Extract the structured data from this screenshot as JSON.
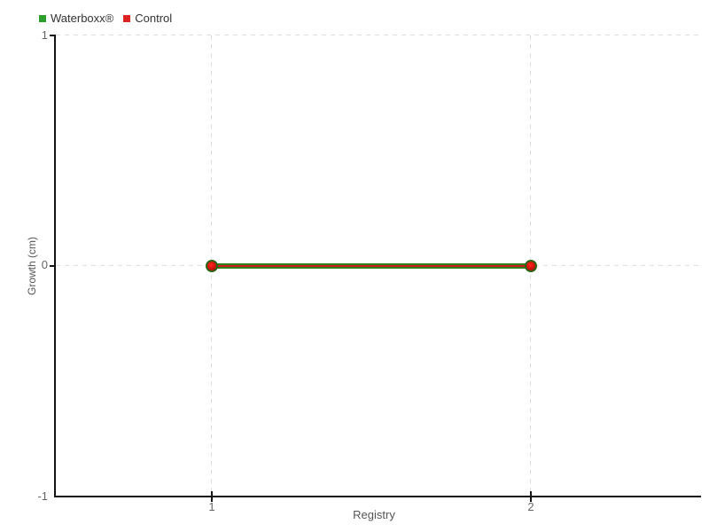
{
  "chart_data": {
    "type": "line",
    "title": "",
    "x": [
      1,
      2
    ],
    "series": [
      {
        "name": "Waterboxx®",
        "values": [
          0,
          0
        ],
        "color": "#2ca02c",
        "line_color": "#2e7d1e",
        "line_width": 6
      },
      {
        "name": "Control",
        "values": [
          0,
          0
        ],
        "color": "#dd2222",
        "line_color": "#cf1d1d",
        "line_width": 2
      }
    ],
    "xlabel": "Registry",
    "ylabel": "Growth (cm)",
    "xlim": [
      0.5,
      2.53
    ],
    "ylim": [
      -1,
      1
    ],
    "xticks": [
      "1",
      "2"
    ],
    "yticks": [
      "1",
      "0",
      "-1"
    ],
    "grid": "dashed",
    "legend_position": "top-left",
    "marker": "circle"
  },
  "legend": {
    "items": [
      {
        "label": "Waterboxx®",
        "color": "#2ca02c"
      },
      {
        "label": "Control",
        "color": "#dd2222"
      }
    ]
  },
  "colors": {
    "green_series": "#2ca02c",
    "red_series": "#dd2222",
    "line_green": "#2e7d1e",
    "line_red": "#cf1d1d",
    "marker_ring": "#2f6414",
    "marker_fill": "#d01010",
    "grid": "#dedede",
    "axis": "#141414",
    "tick_text": "#666666",
    "label_text": "#555555",
    "legend_text": "#333333"
  }
}
